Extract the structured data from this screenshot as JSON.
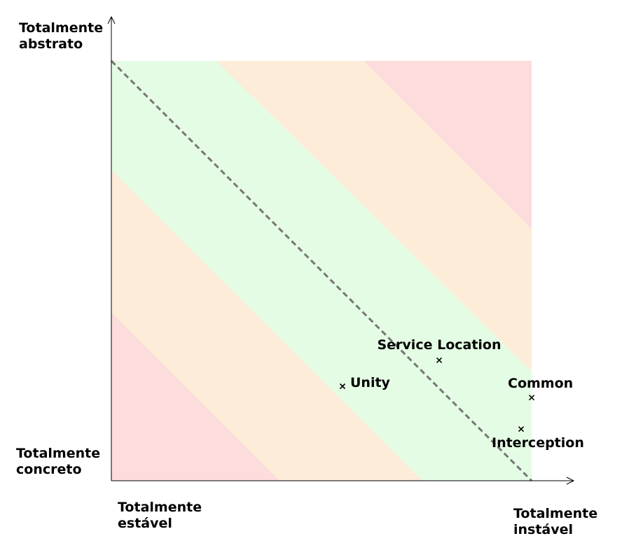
{
  "chart_data": {
    "type": "scatter",
    "title": "",
    "axis_labels": {
      "y_top": [
        "Totalmente",
        "abstrato"
      ],
      "y_bottom": [
        "Totalmente",
        "concreto"
      ],
      "x_left": [
        "Totalmente",
        "estável"
      ],
      "x_right": [
        "Totalmente",
        "instável"
      ]
    },
    "xlabel": "",
    "ylabel": "",
    "xlim": [
      0,
      1
    ],
    "ylim": [
      0,
      1
    ],
    "grid": false,
    "legend": "none",
    "main_sequence": {
      "from": [
        0,
        1
      ],
      "to": [
        1,
        0
      ],
      "style": "dashed",
      "color": "#777777"
    },
    "zones": [
      {
        "name": "distance 0.00–0.25",
        "color": "#e4fce4"
      },
      {
        "name": "distance 0.25–0.50",
        "color": "#fdecd8"
      },
      {
        "name": "distance 0.50–1.00",
        "color": "#fddcdc"
      }
    ],
    "points": [
      {
        "label": "Unity",
        "x": 0.55,
        "y": 0.225,
        "label_pos": "right"
      },
      {
        "label": "Service Location",
        "x": 0.78,
        "y": 0.287,
        "label_pos": "above"
      },
      {
        "label": "Common",
        "x": 1.0,
        "y": 0.198,
        "label_pos": "above-left"
      },
      {
        "label": "Interception",
        "x": 0.975,
        "y": 0.123,
        "label_pos": "below-left"
      }
    ]
  }
}
